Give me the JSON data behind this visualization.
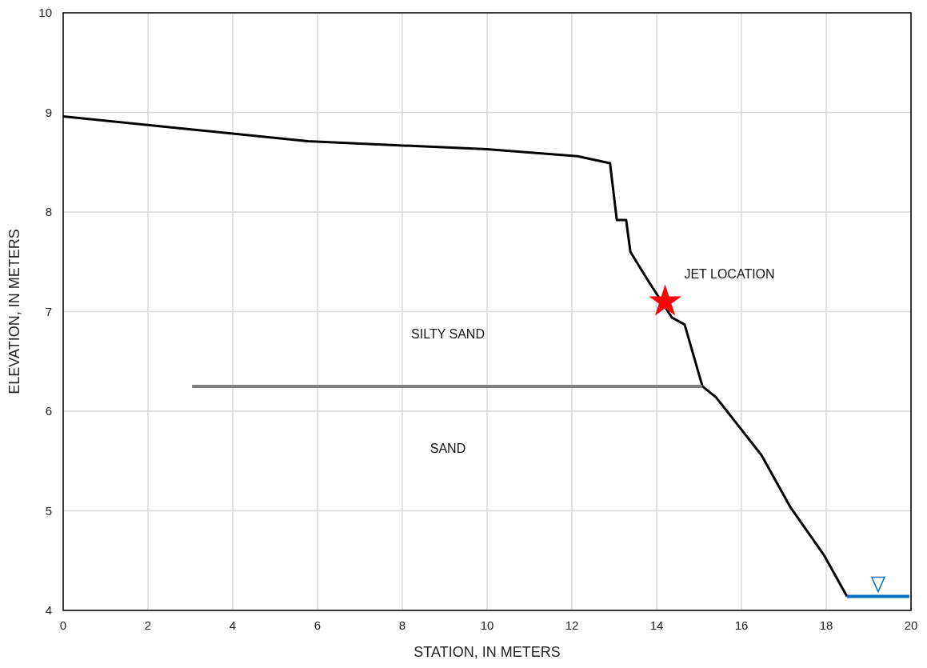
{
  "chart_data": {
    "type": "line",
    "xlabel": "STATION, IN METERS",
    "ylabel": "ELEVATION, IN METERS",
    "xlim": [
      0,
      20
    ],
    "xticks": [
      0,
      2,
      4,
      6,
      8,
      10,
      12,
      14,
      16,
      18,
      20
    ],
    "ylim": [
      4,
      10
    ],
    "yticks": [
      4,
      5,
      6,
      7,
      8,
      9,
      10
    ],
    "grid": true,
    "line_style": "solid",
    "marker": "none",
    "series": [
      {
        "color": "#000000",
        "x": [
          0,
          5.77,
          10.0,
          12.13,
          12.9,
          13.06,
          13.28,
          13.38,
          13.77,
          14.36,
          14.66,
          15.08,
          15.4,
          16.47,
          17.15,
          17.94,
          18.49
        ],
        "values": [
          8.96,
          8.71,
          8.63,
          8.56,
          8.49,
          7.92,
          7.92,
          7.6,
          7.33,
          6.94,
          6.87,
          6.25,
          6.14,
          5.56,
          5.04,
          4.56,
          4.14
        ]
      },
      {
        "color": "#7f7f7f",
        "x": [
          3.04,
          15.08
        ],
        "values": [
          6.25,
          6.25
        ]
      },
      {
        "color": "#0070c0",
        "x": [
          18.49,
          19.96
        ],
        "values": [
          4.14,
          4.14
        ]
      },
      {
        "type": "scatter",
        "marker": "star",
        "color": "#ff0000",
        "x": [
          14.2
        ],
        "values": [
          7.1
        ]
      }
    ],
    "annotations": [
      "JET LOCATION",
      "SILTY SAND",
      "SAND"
    ]
  }
}
